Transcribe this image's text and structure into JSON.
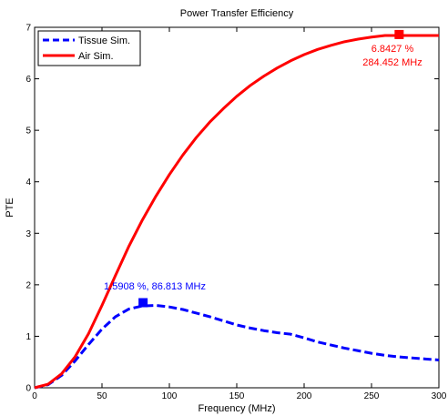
{
  "chart_data": {
    "type": "line",
    "title": "Power Transfer Efficiency",
    "xlabel": "Frequency (MHz)",
    "ylabel": "PTE",
    "xlim": [
      0,
      300
    ],
    "ylim": [
      0,
      7
    ],
    "xticks": [
      0,
      50,
      100,
      150,
      200,
      250,
      300
    ],
    "yticks": [
      0,
      1,
      2,
      3,
      4,
      5,
      6,
      7
    ],
    "grid": false,
    "legend_position": "top-left",
    "series": [
      {
        "name": "Tissue Sim.",
        "color": "#0000ff",
        "style": "dashed",
        "x": [
          0,
          10,
          20,
          30,
          40,
          50,
          60,
          70,
          80,
          90,
          100,
          110,
          120,
          130,
          140,
          150,
          160,
          170,
          180,
          190,
          200,
          210,
          220,
          230,
          240,
          250,
          260,
          270,
          280,
          290,
          300
        ],
        "y": [
          0.0,
          0.06,
          0.24,
          0.52,
          0.84,
          1.14,
          1.38,
          1.53,
          1.59,
          1.6,
          1.57,
          1.52,
          1.45,
          1.38,
          1.3,
          1.22,
          1.16,
          1.11,
          1.07,
          1.04,
          0.97,
          0.89,
          0.83,
          0.77,
          0.72,
          0.67,
          0.63,
          0.6,
          0.58,
          0.56,
          0.54
        ]
      },
      {
        "name": "Air Sim.",
        "color": "#ff0000",
        "style": "solid",
        "x": [
          0,
          10,
          20,
          30,
          40,
          50,
          60,
          70,
          80,
          90,
          100,
          110,
          120,
          130,
          140,
          150,
          160,
          170,
          180,
          190,
          200,
          210,
          220,
          230,
          240,
          250,
          260,
          270,
          280,
          290,
          300
        ],
        "y": [
          0.0,
          0.07,
          0.27,
          0.6,
          1.05,
          1.6,
          2.18,
          2.75,
          3.26,
          3.72,
          4.14,
          4.52,
          4.86,
          5.16,
          5.42,
          5.66,
          5.87,
          6.05,
          6.21,
          6.35,
          6.47,
          6.57,
          6.65,
          6.72,
          6.77,
          6.81,
          6.84,
          6.84,
          6.84,
          6.84,
          6.84
        ]
      }
    ],
    "markers": [
      {
        "series": "Tissue Sim.",
        "x": 80.5,
        "y": 1.6526,
        "color": "#0000ff",
        "label": "1.5908 %, 86.813 MHz"
      },
      {
        "series": "Air Sim.",
        "x": 270.5,
        "y": 6.86,
        "color": "#ff0000",
        "label_line1": "6.8427 %",
        "label_line2": "284.452 MHz"
      }
    ]
  }
}
